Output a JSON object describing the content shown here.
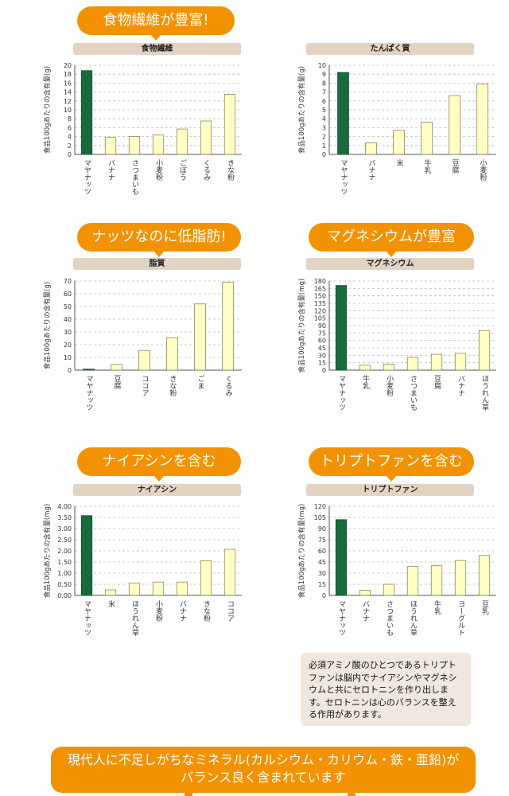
{
  "charts": [
    {
      "bubble": "食物繊維が豊富!",
      "band": "食物繊維",
      "chart_data": {
        "type": "bar",
        "title": "食物繊維",
        "ylabel": "食品100gあたりの含有量(g)",
        "categories": [
          "マヤナッツ",
          "バナナ",
          "さつまいも",
          "小麦粉",
          "ごぼう",
          "くるみ",
          "きな粉"
        ],
        "values": [
          18.8,
          3.8,
          4.0,
          4.4,
          5.7,
          7.5,
          13.5
        ],
        "ylim": [
          0,
          20
        ],
        "yticks": [
          0,
          2,
          4,
          6,
          8,
          10,
          12,
          14,
          16,
          18,
          20
        ],
        "grid": true
      }
    },
    {
      "bubble": "",
      "band": "たんぱく質",
      "chart_data": {
        "type": "bar",
        "title": "たんぱく質",
        "ylabel": "食品100gあたりの含有量(g)",
        "categories": [
          "マヤナッツ",
          "バナナ",
          "米",
          "牛乳",
          "豆腐",
          "小麦粉"
        ],
        "values": [
          9.2,
          1.3,
          2.7,
          3.6,
          6.6,
          7.9
        ],
        "ylim": [
          0,
          10
        ],
        "yticks": [
          0,
          1,
          2,
          3,
          4,
          5,
          6,
          7,
          8,
          9,
          10
        ],
        "grid": true
      }
    },
    {
      "bubble": "ナッツなのに低脂肪!",
      "band": "脂質",
      "chart_data": {
        "type": "bar",
        "title": "脂質",
        "ylabel": "食品100gあたりの含有量(g)",
        "categories": [
          "マヤナッツ",
          "豆腐",
          "ココア",
          "きな粉",
          "ごま",
          "くるみ"
        ],
        "values": [
          0.8,
          4.5,
          15.5,
          25.5,
          52,
          69
        ],
        "ylim": [
          0,
          70
        ],
        "yticks": [
          0,
          10,
          20,
          30,
          40,
          50,
          60,
          70
        ],
        "grid": true
      }
    },
    {
      "bubble": "マグネシウムが豊富",
      "band": "マグネシウム",
      "chart_data": {
        "type": "bar",
        "title": "マグネシウム",
        "ylabel": "食品100gあたりの含有量(mg)",
        "categories": [
          "マヤナッツ",
          "牛乳",
          "小麦粉",
          "さつまいも",
          "豆腐",
          "バナナ",
          "ほうれん草"
        ],
        "values": [
          171,
          10,
          12,
          26,
          32,
          34,
          80
        ],
        "ylim": [
          0,
          180
        ],
        "yticks": [
          0,
          15,
          30,
          45,
          60,
          75,
          90,
          105,
          120,
          135,
          150,
          165,
          180
        ],
        "grid": true
      }
    },
    {
      "bubble": "ナイアシンを含む",
      "band": "ナイアシン",
      "chart_data": {
        "type": "bar",
        "title": "ナイアシン",
        "ylabel": "食品100gあたりの含有量(mg)",
        "categories": [
          "マヤナッツ",
          "米",
          "ほうれん草",
          "小麦粉",
          "バナナ",
          "きな粉",
          "ココア"
        ],
        "values": [
          3.58,
          0.25,
          0.55,
          0.6,
          0.6,
          1.55,
          2.07
        ],
        "ylim": [
          0,
          4
        ],
        "yticks": [
          "0.00",
          "0.50",
          "1.00",
          "1.50",
          "2.00",
          "2.50",
          "3.00",
          "3.50",
          "4.00"
        ],
        "grid": true
      }
    },
    {
      "bubble": "トリプトファンを含む",
      "band": "トリプトファン",
      "chart_data": {
        "type": "bar",
        "title": "トリプトファン",
        "ylabel": "食品100gあたりの含有量(mg)",
        "categories": [
          "マヤナッツ",
          "バナナ",
          "さつまいも",
          "ほうれん草",
          "牛乳",
          "ヨーグルト",
          "豆乳"
        ],
        "values": [
          102,
          7,
          15,
          39,
          40,
          47,
          54
        ],
        "ylim": [
          0,
          120
        ],
        "yticks": [
          0,
          15,
          30,
          45,
          60,
          75,
          90,
          105,
          120
        ],
        "grid": true
      }
    }
  ],
  "note": "必須アミノ酸のひとつであるトリプトファンは脳内でナイアシンやマグネシウムと共にセロトニンを作り出します。セロトニンは心のバランスを整える作用があります。",
  "footer": {
    "line1": "現代人に不足しがちなミネラル(カルシウム・カリウム・鉄・亜鉛)が",
    "line2": "バランス良く含まれています"
  },
  "colors": {
    "accent": "#f39200",
    "band": "#e2d3c3",
    "highlight_bar": "#1a6b3c",
    "bar": "#ffffc6",
    "bar_stroke": "#7a7a4a"
  }
}
